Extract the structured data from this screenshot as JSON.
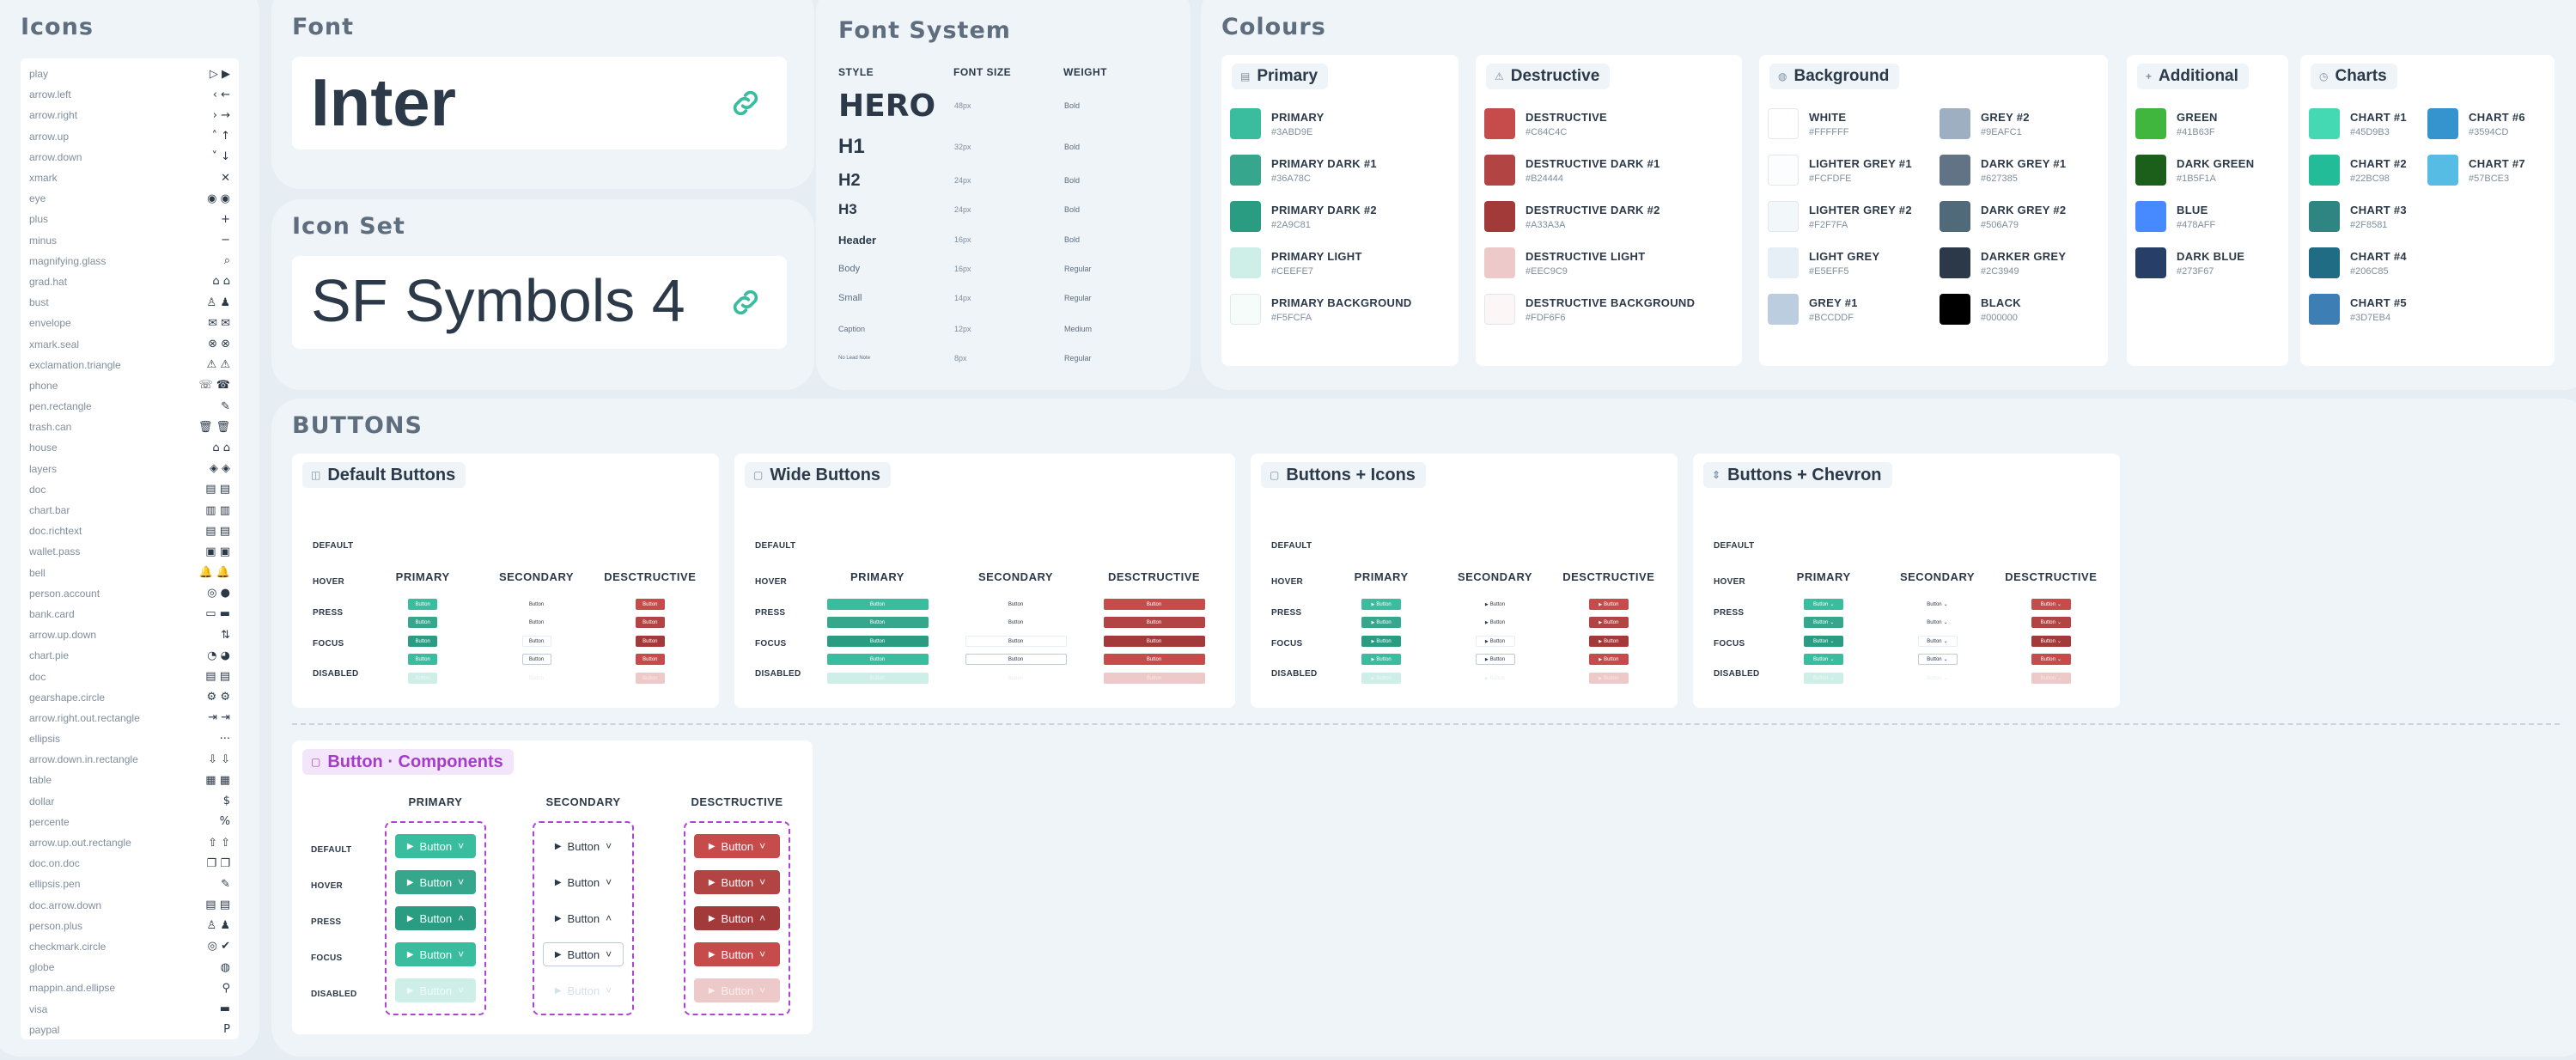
{
  "icons": {
    "title": "Icons",
    "items": [
      {
        "name": "play",
        "g": "▷ ▶"
      },
      {
        "name": "arrow.left",
        "g": "‹ ←"
      },
      {
        "name": "arrow.right",
        "g": "› →"
      },
      {
        "name": "arrow.up",
        "g": "˄ ↑"
      },
      {
        "name": "arrow.down",
        "g": "˅ ↓"
      },
      {
        "name": "xmark",
        "g": "✕"
      },
      {
        "name": "eye",
        "g": "◉ ◉"
      },
      {
        "name": "plus",
        "g": "+"
      },
      {
        "name": "minus",
        "g": "−"
      },
      {
        "name": "magnifying.glass",
        "g": "⌕"
      },
      {
        "name": "grad.hat",
        "g": "⌂ ⌂"
      },
      {
        "name": "bust",
        "g": "♙ ♟"
      },
      {
        "name": "envelope",
        "g": "✉ ✉"
      },
      {
        "name": "xmark.seal",
        "g": "⊗ ⊗"
      },
      {
        "name": "exclamation.triangle",
        "g": "⚠ ⚠"
      },
      {
        "name": "phone",
        "g": "☏ ☎"
      },
      {
        "name": "pen.rectangle",
        "g": "✎"
      },
      {
        "name": "trash.can",
        "g": "🗑 🗑"
      },
      {
        "name": "house",
        "g": "⌂ ⌂"
      },
      {
        "name": "layers",
        "g": "◈ ◈"
      },
      {
        "name": "doc",
        "g": "▤ ▤"
      },
      {
        "name": "chart.bar",
        "g": "▥ ▥"
      },
      {
        "name": "doc.richtext",
        "g": "▤ ▤"
      },
      {
        "name": "wallet.pass",
        "g": "▣ ▣"
      },
      {
        "name": "bell",
        "g": "🔔 🔔"
      },
      {
        "name": "person.account",
        "g": "◎ ●"
      },
      {
        "name": "bank.card",
        "g": "▭ ▬"
      },
      {
        "name": "arrow.up.down",
        "g": "⇅"
      },
      {
        "name": "chart.pie",
        "g": "◔ ◕"
      },
      {
        "name": "doc",
        "g": "▤ ▤"
      },
      {
        "name": "gearshape.circle",
        "g": "⚙ ⚙"
      },
      {
        "name": "arrow.right.out.rectangle",
        "g": "⇥ ⇥"
      },
      {
        "name": "ellipsis",
        "g": "···"
      },
      {
        "name": "arrow.down.in.rectangle",
        "g": "⇩ ⇩"
      },
      {
        "name": "table",
        "g": "▦ ▦"
      },
      {
        "name": "dollar",
        "g": "$"
      },
      {
        "name": "percente",
        "g": "%"
      },
      {
        "name": "arrow.up.out.rectangle",
        "g": "⇧ ⇧"
      },
      {
        "name": "doc.on.doc",
        "g": "❐ ❐"
      },
      {
        "name": "ellipsis.pen",
        "g": "✎"
      },
      {
        "name": "doc.arrow.down",
        "g": "▤ ▤"
      },
      {
        "name": "person.plus",
        "g": "♙ ♟"
      },
      {
        "name": "checkmark.circle",
        "g": "◎ ✔"
      },
      {
        "name": "globe",
        "g": "◍"
      },
      {
        "name": "mappin.and.ellipse",
        "g": "⚲"
      },
      {
        "name": "visa",
        "g": "▬"
      },
      {
        "name": "paypal",
        "g": "P"
      }
    ]
  },
  "font": {
    "title": "Font",
    "name": "Inter"
  },
  "iconset": {
    "title": "Icon Set",
    "name": "SF Symbols 4"
  },
  "fontsystem": {
    "title": "Font System",
    "headers": {
      "style": "STYLE",
      "size": "FONT SIZE",
      "weight": "WEIGHT"
    },
    "rows": [
      {
        "style": "HERO",
        "size": "48px",
        "weight": "Bold"
      },
      {
        "style": "H1",
        "size": "32px",
        "weight": "Bold"
      },
      {
        "style": "H2",
        "size": "24px",
        "weight": "Bold"
      },
      {
        "style": "H3",
        "size": "24px",
        "weight": "Bold"
      },
      {
        "style": "Header",
        "size": "16px",
        "weight": "Bold"
      },
      {
        "style": "Body",
        "size": "16px",
        "weight": "Regular"
      },
      {
        "style": "Small",
        "size": "14px",
        "weight": "Regular"
      },
      {
        "style": "Caption",
        "size": "12px",
        "weight": "Medium"
      },
      {
        "style": "No Lead Note",
        "size": "8px",
        "weight": "Regular"
      }
    ]
  },
  "colours": {
    "title": "Colours",
    "primary": {
      "title": "Primary",
      "items": [
        {
          "name": "PRIMARY",
          "hex": "#3ABD9E"
        },
        {
          "name": "PRIMARY DARK #1",
          "hex": "#36A78C"
        },
        {
          "name": "PRIMARY DARK #2",
          "hex": "#2A9C81"
        },
        {
          "name": "PRIMARY LIGHT",
          "hex": "#CEEFE7"
        },
        {
          "name": "PRIMARY BACKGROUND",
          "hex": "#F5FCFA"
        }
      ]
    },
    "destructive": {
      "title": "Destructive",
      "items": [
        {
          "name": "DESTRUCTIVE",
          "hex": "#C64C4C"
        },
        {
          "name": "DESTRUCTIVE DARK #1",
          "hex": "#B24444"
        },
        {
          "name": "DESTRUCTIVE DARK #2",
          "hex": "#A33A3A"
        },
        {
          "name": "DESTRUCTIVE LIGHT",
          "hex": "#EEC9C9"
        },
        {
          "name": "DESTRUCTIVE BACKGROUND",
          "hex": "#FDF6F6"
        }
      ]
    },
    "background": {
      "title": "Background",
      "col1": [
        {
          "name": "WHITE",
          "hex": "#FFFFFF"
        },
        {
          "name": "LIGHTER GREY #1",
          "hex": "#FCFDFE"
        },
        {
          "name": "LIGHTER GREY #2",
          "hex": "#F2F7FA"
        },
        {
          "name": "LIGHT GREY",
          "hex": "#E5EFF5"
        },
        {
          "name": "GREY #1",
          "hex": "#BCCDDF"
        }
      ],
      "col2": [
        {
          "name": "GREY #2",
          "hex": "#9EAFC1"
        },
        {
          "name": "DARK GREY #1",
          "hex": "#627385"
        },
        {
          "name": "DARK GREY #2",
          "hex": "#506A79"
        },
        {
          "name": "DARKER GREY",
          "hex": "#2C3949"
        },
        {
          "name": "BLACK",
          "hex": "#000000"
        }
      ]
    },
    "additional": {
      "title": "Additional",
      "items": [
        {
          "name": "GREEN",
          "hex": "#41B63F"
        },
        {
          "name": "DARK GREEN",
          "hex": "#1B5F1A"
        },
        {
          "name": "BLUE",
          "hex": "#478AFF"
        },
        {
          "name": "DARK BLUE",
          "hex": "#273F67"
        }
      ]
    },
    "charts": {
      "title": "Charts",
      "col1": [
        {
          "name": "CHART #1",
          "hex": "#45D9B3"
        },
        {
          "name": "CHART #2",
          "hex": "#22BC98"
        },
        {
          "name": "CHART #3",
          "hex": "#2F8581"
        },
        {
          "name": "CHART #4",
          "hex": "#206C85"
        },
        {
          "name": "CHART #5",
          "hex": "#3D7EB4"
        }
      ],
      "col2": [
        {
          "name": "CHART #6",
          "hex": "#3594CD"
        },
        {
          "name": "CHART #7",
          "hex": "#57BCE3"
        }
      ]
    }
  },
  "buttons": {
    "title": "BUTTONS",
    "states": [
      "DEFAULT",
      "HOVER",
      "PRESS",
      "FOCUS",
      "DISABLED"
    ],
    "cols": [
      "PRIMARY",
      "SECONDARY",
      "DESCTRUCTIVE"
    ],
    "mini_label": "Button",
    "cards": [
      {
        "title": "Default Buttons",
        "icon": "◫"
      },
      {
        "title": "Wide Buttons",
        "icon": "▢"
      },
      {
        "title": "Buttons + Icons",
        "icon": "▢"
      },
      {
        "title": "Buttons + Chevron",
        "icon": "⇕"
      }
    ],
    "components": {
      "title": "Button · Components",
      "icon": "▢",
      "label": "Button"
    }
  }
}
